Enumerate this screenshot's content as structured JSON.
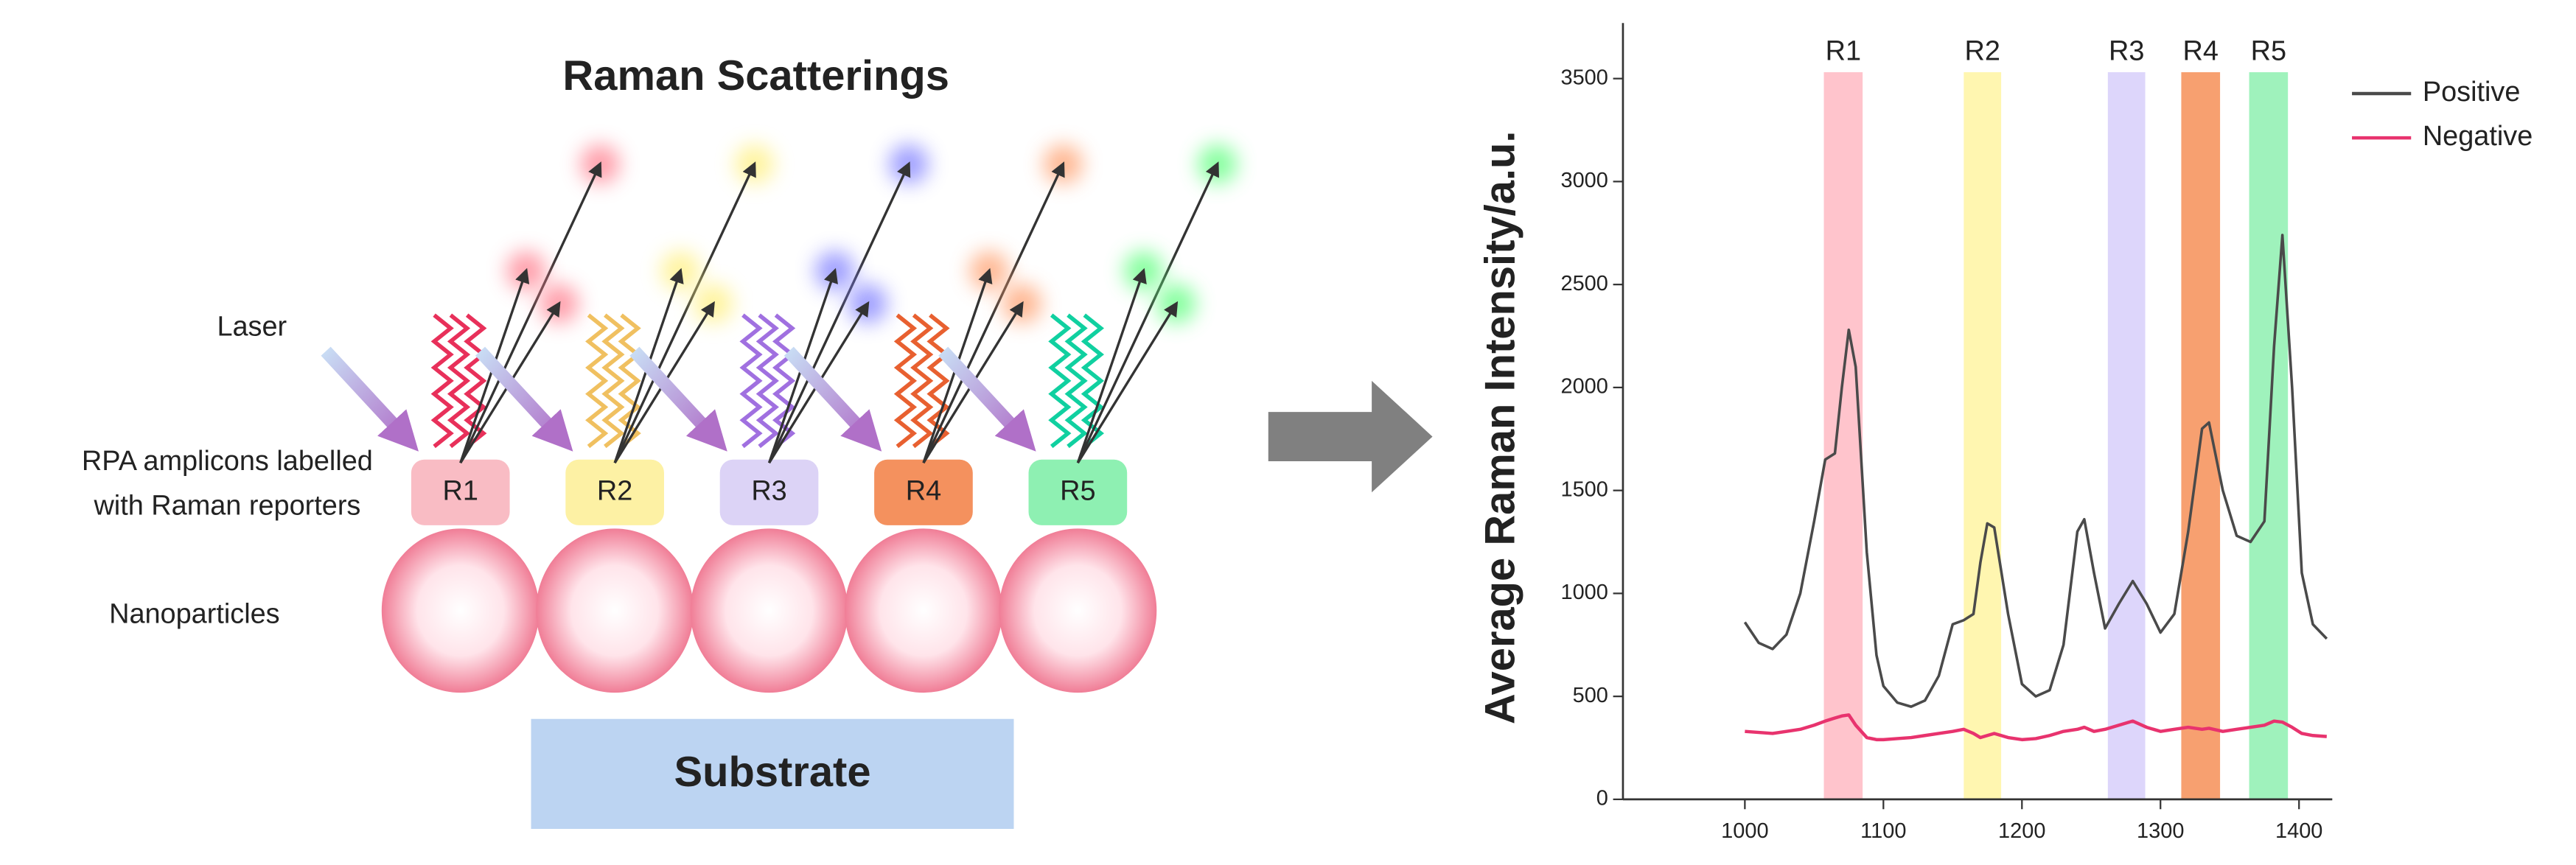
{
  "diagram": {
    "title": "Raman Scatterings",
    "laser": "Laser",
    "amplicons": [
      "RPA amplicons labelled",
      "with Raman reporters"
    ],
    "nanoparticles": "Nanoparticles",
    "substrate": "Substrate",
    "reporters": [
      "R1",
      "R2",
      "R3",
      "R4",
      "R5"
    ]
  },
  "chart_data": {
    "type": "line",
    "y_label": "Average Raman Intensity/a.u.",
    "xlim": [
      912,
      1424
    ],
    "ylim": [
      0,
      3770
    ],
    "xticks": [
      1000,
      1100,
      1200,
      1300,
      1400
    ],
    "yticks": [
      0,
      500,
      1000,
      1500,
      2000,
      2500,
      3000,
      3500
    ],
    "legend": "upper right",
    "bands": [
      {
        "label": "R1",
        "from": 1057,
        "to": 1085,
        "color": "#ffc4cc"
      },
      {
        "label": "R2",
        "from": 1158,
        "to": 1185,
        "color": "#fff6b0"
      },
      {
        "label": "R3",
        "from": 1262,
        "to": 1289,
        "color": "#ddd6fb"
      },
      {
        "label": "R4",
        "from": 1315,
        "to": 1343,
        "color": "#f7a070"
      },
      {
        "label": "R5",
        "from": 1364,
        "to": 1392,
        "color": "#9ff2bc"
      }
    ],
    "x": [
      1000,
      1010,
      1020,
      1030,
      1040,
      1050,
      1058,
      1065,
      1070,
      1075,
      1080,
      1088,
      1095,
      1100,
      1110,
      1120,
      1130,
      1140,
      1150,
      1158,
      1165,
      1170,
      1175,
      1180,
      1190,
      1200,
      1210,
      1220,
      1230,
      1240,
      1245,
      1252,
      1260,
      1270,
      1280,
      1290,
      1300,
      1310,
      1320,
      1330,
      1335,
      1345,
      1355,
      1365,
      1375,
      1382,
      1388,
      1395,
      1402,
      1410,
      1420
    ],
    "series": [
      {
        "name": "Positive",
        "color": "#4a4a4a",
        "values": [
          860,
          760,
          730,
          800,
          1000,
          1350,
          1650,
          1680,
          2000,
          2280,
          2100,
          1200,
          700,
          550,
          470,
          450,
          480,
          600,
          850,
          870,
          900,
          1150,
          1340,
          1320,
          900,
          560,
          500,
          530,
          750,
          1300,
          1360,
          1100,
          830,
          950,
          1060,
          950,
          810,
          900,
          1300,
          1800,
          1830,
          1500,
          1280,
          1250,
          1350,
          2200,
          2740,
          2000,
          1100,
          850,
          780
        ]
      },
      {
        "name": "Negative",
        "color": "#e8336e",
        "values": [
          330,
          325,
          320,
          330,
          340,
          360,
          380,
          395,
          405,
          410,
          360,
          300,
          290,
          290,
          295,
          300,
          310,
          320,
          330,
          340,
          320,
          300,
          310,
          320,
          300,
          290,
          295,
          310,
          330,
          340,
          350,
          330,
          340,
          360,
          380,
          350,
          330,
          340,
          350,
          340,
          345,
          330,
          340,
          350,
          360,
          380,
          375,
          350,
          320,
          310,
          305
        ]
      }
    ]
  }
}
